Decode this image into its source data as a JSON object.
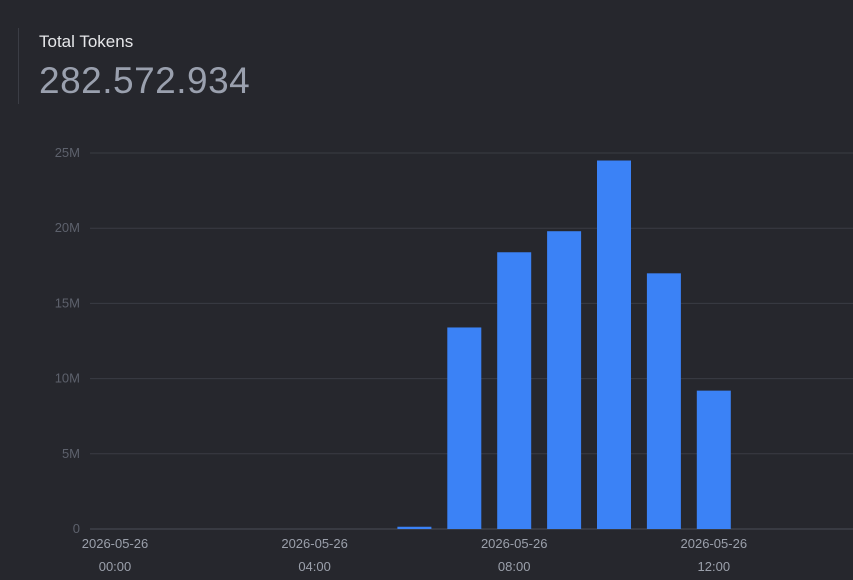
{
  "stat": {
    "label": "Total Tokens",
    "value": "282.572.934"
  },
  "colors": {
    "background": "#26272d",
    "bar": "#3b82f6",
    "grid": "#3a3c44"
  },
  "chart_data": {
    "type": "bar",
    "title": "",
    "xlabel": "",
    "ylabel": "",
    "ylim": [
      0,
      25000000
    ],
    "yticks": [
      {
        "value": 0,
        "label": "0"
      },
      {
        "value": 5000000,
        "label": "5M"
      },
      {
        "value": 10000000,
        "label": "10M"
      },
      {
        "value": 15000000,
        "label": "15M"
      },
      {
        "value": 20000000,
        "label": "20M"
      },
      {
        "value": 25000000,
        "label": "25M"
      }
    ],
    "x": [
      "00:00",
      "01:00",
      "02:00",
      "03:00",
      "04:00",
      "05:00",
      "06:00",
      "07:00",
      "08:00",
      "09:00",
      "10:00",
      "11:00",
      "12:00",
      "13:00",
      "14:00"
    ],
    "values": [
      0,
      0,
      0,
      0,
      0,
      0,
      150000,
      13400000,
      18400000,
      19800000,
      24500000,
      17000000,
      9200000,
      0,
      0
    ],
    "xtick_labels": [
      {
        "at": "00:00",
        "date": "2026-05-26",
        "time": "00:00"
      },
      {
        "at": "04:00",
        "date": "2026-05-26",
        "time": "04:00"
      },
      {
        "at": "08:00",
        "date": "2026-05-26",
        "time": "08:00"
      },
      {
        "at": "12:00",
        "date": "2026-05-26",
        "time": "12:00"
      }
    ],
    "grid": true
  }
}
